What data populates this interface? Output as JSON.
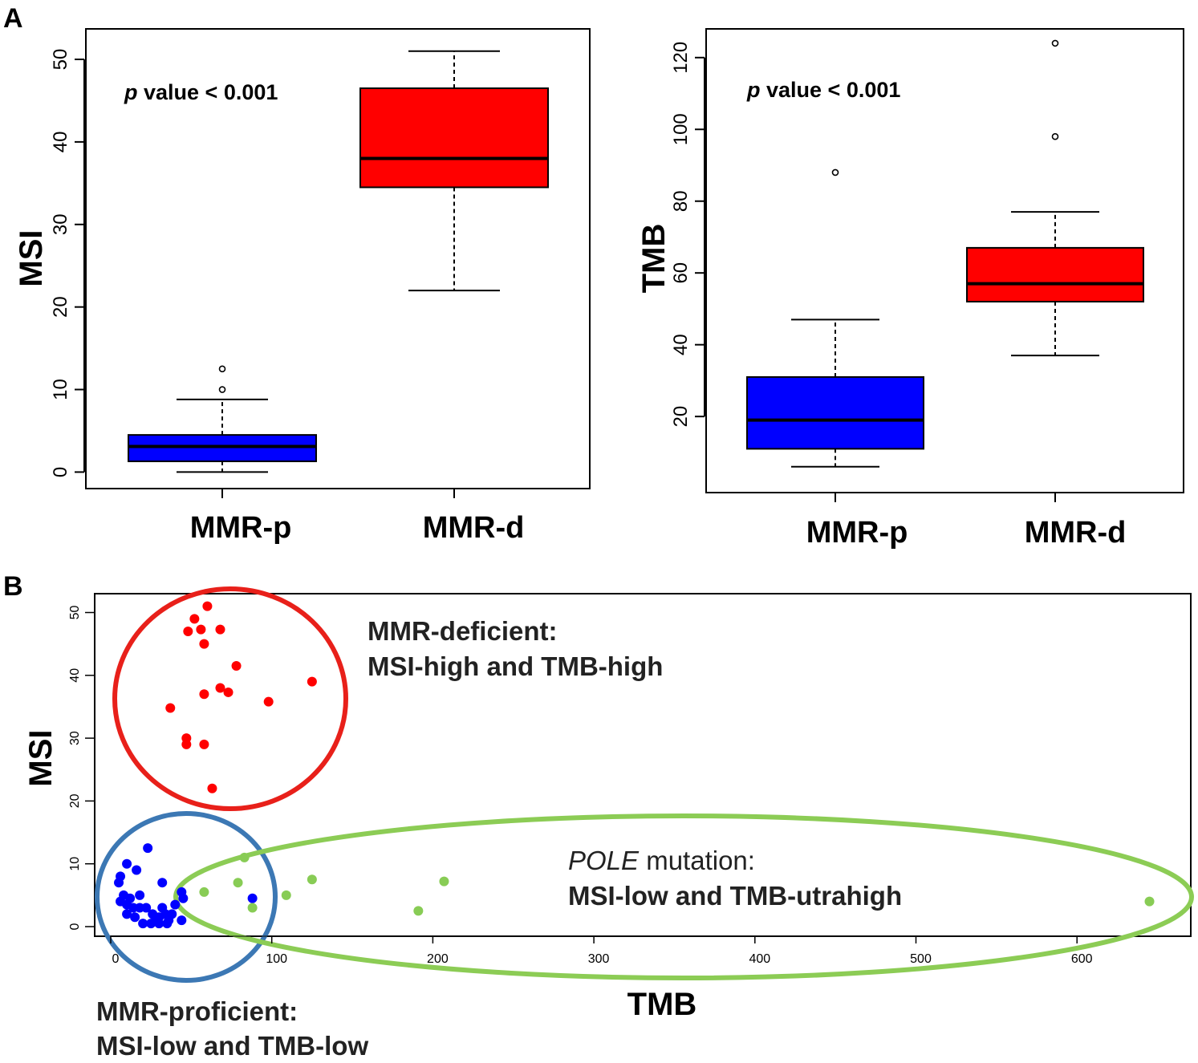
{
  "panels": {
    "a_letter": "A",
    "b_letter": "B"
  },
  "chart_data": [
    {
      "type": "box",
      "panel": "A-left",
      "ylabel": "MSI",
      "ylim": [
        0,
        52
      ],
      "yticks": [
        0,
        10,
        20,
        30,
        40,
        50
      ],
      "categories": [
        "MMR-p",
        "MMR-d"
      ],
      "annotation": {
        "italic": "p",
        "text": " value < 0.001"
      },
      "boxes": [
        {
          "category": "MMR-p",
          "color": "#0000ff",
          "whisker_low": 0,
          "q1": 1.3,
          "median": 3.1,
          "q3": 4.5,
          "whisker_high": 8.8,
          "outliers": [
            10,
            12.5
          ]
        },
        {
          "category": "MMR-d",
          "color": "#ff0000",
          "whisker_low": 22,
          "q1": 34.5,
          "median": 38,
          "q3": 46.5,
          "whisker_high": 51,
          "outliers": []
        }
      ]
    },
    {
      "type": "box",
      "panel": "A-right",
      "ylabel": "TMB",
      "ylim": [
        2,
        125
      ],
      "yticks": [
        20,
        40,
        60,
        80,
        100,
        120
      ],
      "categories": [
        "MMR-p",
        "MMR-d"
      ],
      "annotation": {
        "italic": "p",
        "text": " value < 0.001"
      },
      "boxes": [
        {
          "category": "MMR-p",
          "color": "#0000ff",
          "whisker_low": 6,
          "q1": 11,
          "median": 19,
          "q3": 31,
          "whisker_high": 47,
          "outliers": [
            88
          ]
        },
        {
          "category": "MMR-d",
          "color": "#ff0000",
          "whisker_low": 37,
          "q1": 52,
          "median": 57,
          "q3": 67,
          "whisker_high": 77,
          "outliers": [
            98,
            124
          ]
        }
      ]
    },
    {
      "type": "scatter",
      "panel": "B",
      "xlabel": "TMB",
      "ylabel": "MSI",
      "xlim": [
        -10,
        670
      ],
      "ylim": [
        -1,
        54
      ],
      "xticks": [
        0,
        100,
        200,
        300,
        400,
        500,
        600
      ],
      "yticks": [
        0,
        10,
        20,
        30,
        40,
        50
      ],
      "series": [
        {
          "color": "#ff0000",
          "points": [
            [
              60,
              51
            ],
            [
              52,
              49
            ],
            [
              48,
              47
            ],
            [
              56,
              47.3
            ],
            [
              68,
              47.3
            ],
            [
              58,
              45
            ],
            [
              78,
              41.5
            ],
            [
              125,
              39
            ],
            [
              68,
              38
            ],
            [
              73,
              37.3
            ],
            [
              58,
              37
            ],
            [
              98,
              35.8
            ],
            [
              37,
              34.8
            ],
            [
              47,
              30
            ],
            [
              47,
              29
            ],
            [
              58,
              29
            ],
            [
              63,
              22
            ]
          ]
        },
        {
          "color": "#0000ff",
          "points": [
            [
              23,
              12.5
            ],
            [
              10,
              10
            ],
            [
              6,
              8
            ],
            [
              5,
              7
            ],
            [
              16,
              9
            ],
            [
              32,
              7
            ],
            [
              8,
              5
            ],
            [
              12,
              4.5
            ],
            [
              18,
              5
            ],
            [
              6,
              4
            ],
            [
              10,
              3.5
            ],
            [
              14,
              3
            ],
            [
              18,
              3
            ],
            [
              22,
              3
            ],
            [
              26,
              2
            ],
            [
              28,
              1
            ],
            [
              30,
              1.5
            ],
            [
              32,
              3
            ],
            [
              34,
              2
            ],
            [
              36,
              1
            ],
            [
              38,
              2
            ],
            [
              40,
              3.5
            ],
            [
              44,
              1
            ],
            [
              45,
              4.5
            ],
            [
              10,
              2
            ],
            [
              15,
              1.5
            ],
            [
              20,
              0.5
            ],
            [
              25,
              0.5
            ],
            [
              30,
              0.5
            ],
            [
              35,
              0.5
            ],
            [
              88,
              4.5
            ],
            [
              44,
              5.5
            ]
          ]
        },
        {
          "color": "#88cc55",
          "points": [
            [
              83,
              11
            ],
            [
              58,
              5.5
            ],
            [
              79,
              7
            ],
            [
              88,
              3
            ],
            [
              109,
              5
            ],
            [
              125,
              7.5
            ],
            [
              191,
              2.5
            ],
            [
              207,
              7.2
            ],
            [
              645,
              4
            ]
          ]
        }
      ],
      "annotations": {
        "deficient": {
          "line1": "MMR-deficient:",
          "line2": "MSI-high and TMB-high"
        },
        "pole": {
          "line1_italic": "POLE",
          "line1_rest": " mutation:",
          "line2": "MSI-low and TMB-utrahigh"
        },
        "proficient": {
          "line1": "MMR-proficient:",
          "line2": "MSI-low and TMB-low"
        }
      },
      "outline_colors": {
        "deficient": "#e8201a",
        "proficient": "#3c78b4",
        "pole": "#8ccc55"
      }
    }
  ]
}
